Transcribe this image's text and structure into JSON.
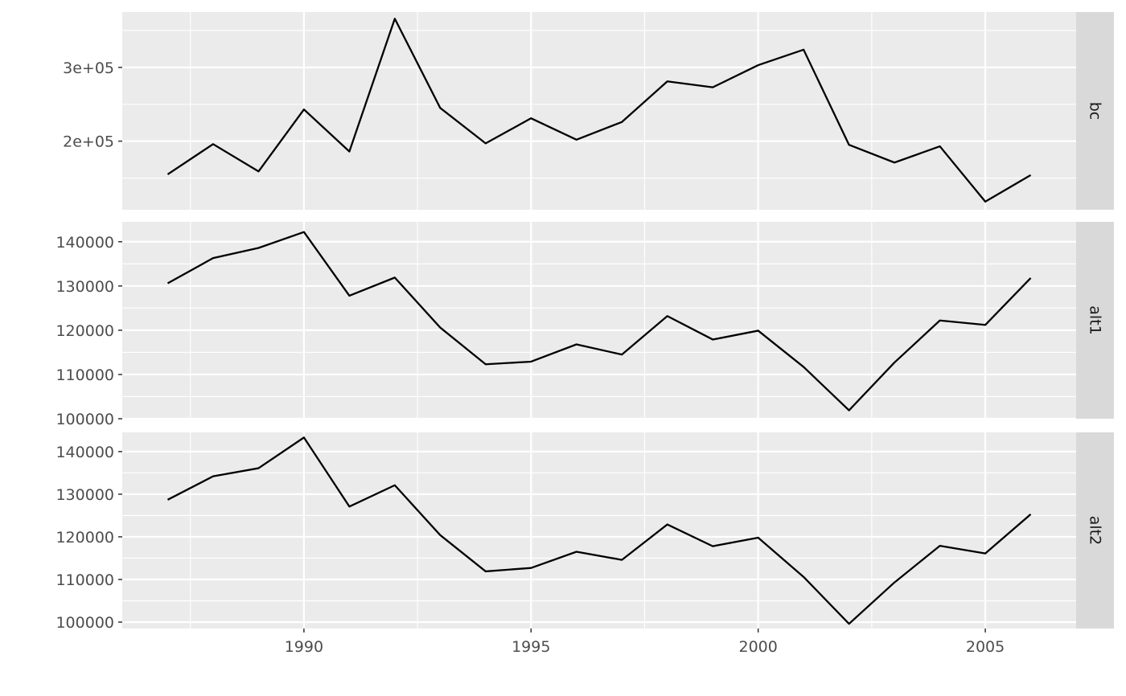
{
  "chart_data": {
    "type": "line",
    "layout": "facet-rows",
    "x": [
      1987,
      1988,
      1989,
      1990,
      1991,
      1992,
      1993,
      1994,
      1995,
      1996,
      1997,
      1998,
      1999,
      2000,
      2001,
      2002,
      2003,
      2004,
      2005,
      2006
    ],
    "xlim": [
      1986.0,
      2007.0
    ],
    "x_ticks": [
      1990,
      1995,
      2000,
      2005
    ],
    "x_tick_labels": [
      "1990",
      "1995",
      "2000",
      "2005"
    ],
    "grid": true,
    "background": "#ebebeb",
    "strip_background": "#d9d9d9",
    "line_color": "#000000",
    "panels": [
      {
        "strip": "bc",
        "ylim": [
          107000,
          375000
        ],
        "y_ticks": [
          200000,
          300000
        ],
        "y_tick_labels": [
          "2e+05",
          "3e+05"
        ],
        "values": [
          155000,
          196000,
          159000,
          243000,
          186000,
          366000,
          245000,
          197000,
          231000,
          202000,
          226000,
          281000,
          273000,
          303000,
          324000,
          195000,
          171000,
          193000,
          118000,
          154000
        ]
      },
      {
        "strip": "alt1",
        "ylim": [
          100000,
          144500
        ],
        "y_ticks": [
          100000,
          110000,
          120000,
          130000,
          140000
        ],
        "y_tick_labels": [
          "100000",
          "110000",
          "120000",
          "130000",
          "140000"
        ],
        "values": [
          130600,
          136300,
          138600,
          142200,
          127800,
          131900,
          120600,
          112300,
          112900,
          116800,
          114500,
          123200,
          117900,
          119900,
          111700,
          101900,
          112700,
          122200,
          121200,
          131800
        ]
      },
      {
        "strip": "alt2",
        "ylim": [
          98500,
          144500
        ],
        "y_ticks": [
          100000,
          110000,
          120000,
          130000,
          140000
        ],
        "y_tick_labels": [
          "100000",
          "110000",
          "120000",
          "130000",
          "140000"
        ],
        "values": [
          128700,
          134200,
          136100,
          143300,
          127100,
          132100,
          120400,
          111900,
          112700,
          116500,
          114600,
          122900,
          117800,
          119800,
          110600,
          99600,
          109300,
          117900,
          116100,
          125300
        ]
      }
    ]
  }
}
